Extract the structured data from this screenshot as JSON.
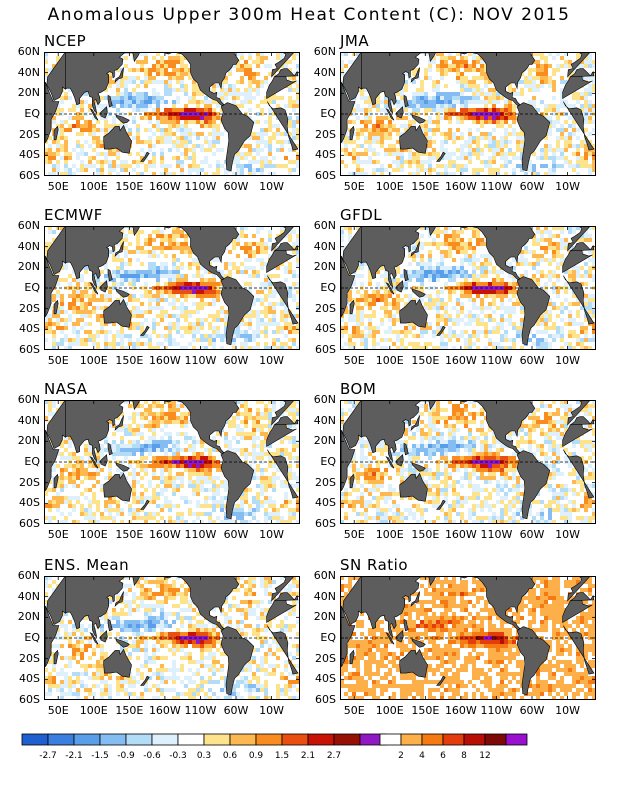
{
  "title": "Anomalous Upper 300m Heat Content (C): NOV 2015",
  "colors": {
    "land": "#5d5d5d",
    "neg": [
      "#1f5fcf",
      "#3a7fdf",
      "#5a9ee9",
      "#85bdf2",
      "#b3dcf7",
      "#ddf0fb"
    ],
    "pos": [
      "#fde38c",
      "#fdb84f",
      "#f98c1e",
      "#ea4f12",
      "#c81206",
      "#961006",
      "#8f1ac4"
    ],
    "sn": [
      "#ffffff",
      "#fdb04a",
      "#f67a12",
      "#e23d0a",
      "#b80e06",
      "#7d0a06",
      "#9a0fd0"
    ]
  },
  "panels": [
    {
      "name": "NCEP"
    },
    {
      "name": "JMA"
    },
    {
      "name": "ECMWF"
    },
    {
      "name": "GFDL"
    },
    {
      "name": "NASA"
    },
    {
      "name": "BOM"
    },
    {
      "name": "ENS. Mean"
    },
    {
      "name": "SN Ratio"
    }
  ],
  "lat_labels": [
    "60N",
    "40N",
    "20N",
    "EQ",
    "20S",
    "40S",
    "60S"
  ],
  "lon_labels": [
    "50E",
    "100E",
    "150E",
    "160W",
    "110W",
    "60W",
    "10W"
  ],
  "colorbar_anomaly": {
    "labels": [
      "-2.7",
      "-2.1",
      "-1.5",
      "-0.9",
      "-0.6",
      "-0.3",
      "0.3",
      "0.6",
      "0.9",
      "1.5",
      "2.1",
      "2.7"
    ]
  },
  "colorbar_snratio": {
    "labels": [
      "2",
      "4",
      "6",
      "8",
      "12"
    ]
  },
  "chart_data": {
    "type": "heatmap",
    "title": "Anomalous Upper 300m Heat Content (C): NOV 2015",
    "units": "C",
    "lat_range": [
      "60S",
      "60N"
    ],
    "lon_range": [
      "30E",
      "30E"
    ],
    "anomaly_levels": [
      -2.7,
      -2.1,
      -1.5,
      -0.9,
      -0.6,
      -0.3,
      0.3,
      0.6,
      0.9,
      1.5,
      2.1,
      2.7
    ],
    "snratio_levels": [
      2,
      4,
      6,
      8,
      12
    ],
    "panels": [
      "NCEP",
      "JMA",
      "ECMWF",
      "GFDL",
      "NASA",
      "BOM",
      "ENS. Mean",
      "SN Ratio"
    ]
  }
}
